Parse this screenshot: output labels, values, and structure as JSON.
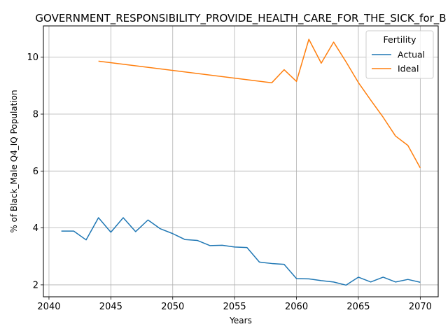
{
  "chart_data": {
    "type": "line",
    "title": "GOVERNMENT_RESPONSIBILITY_PROVIDE_HEALTH_CARE_FOR_THE_SICK_for_B",
    "xlabel": "Years",
    "ylabel": "% of Black_Male Q4_IQ Population",
    "xlim": [
      2039.55,
      2071.45
    ],
    "ylim": [
      1.58,
      11.1
    ],
    "xticks": [
      2040,
      2045,
      2050,
      2055,
      2060,
      2065,
      2070
    ],
    "yticks": [
      2,
      4,
      6,
      8,
      10
    ],
    "grid": true,
    "legend": {
      "title": "Fertility",
      "placement": "top-right"
    },
    "series": [
      {
        "name": "Actual",
        "color": "#1f77b4",
        "x": [
          2041,
          2042,
          2043,
          2044,
          2045,
          2046,
          2047,
          2048,
          2049,
          2050,
          2051,
          2052,
          2053,
          2054,
          2055,
          2056,
          2057,
          2058,
          2059,
          2060,
          2061,
          2062,
          2063,
          2064,
          2065,
          2066,
          2067,
          2068,
          2069,
          2070
        ],
        "values": [
          3.89,
          3.89,
          3.58,
          4.36,
          3.85,
          4.36,
          3.87,
          4.28,
          3.97,
          3.8,
          3.59,
          3.56,
          3.38,
          3.39,
          3.33,
          3.31,
          2.8,
          2.75,
          2.72,
          2.22,
          2.21,
          2.15,
          2.1,
          1.99,
          2.27,
          2.1,
          2.27,
          2.1,
          2.19,
          2.09
        ]
      },
      {
        "name": "Ideal",
        "color": "#ff7f0e",
        "x": [
          2044,
          2058,
          2059,
          2060,
          2061,
          2062,
          2063,
          2064,
          2065,
          2066,
          2067,
          2068,
          2069,
          2070
        ],
        "values": [
          9.86,
          9.1,
          9.56,
          9.15,
          10.63,
          9.79,
          10.53,
          9.84,
          9.11,
          8.49,
          7.89,
          7.23,
          6.9,
          6.11
        ]
      }
    ]
  }
}
